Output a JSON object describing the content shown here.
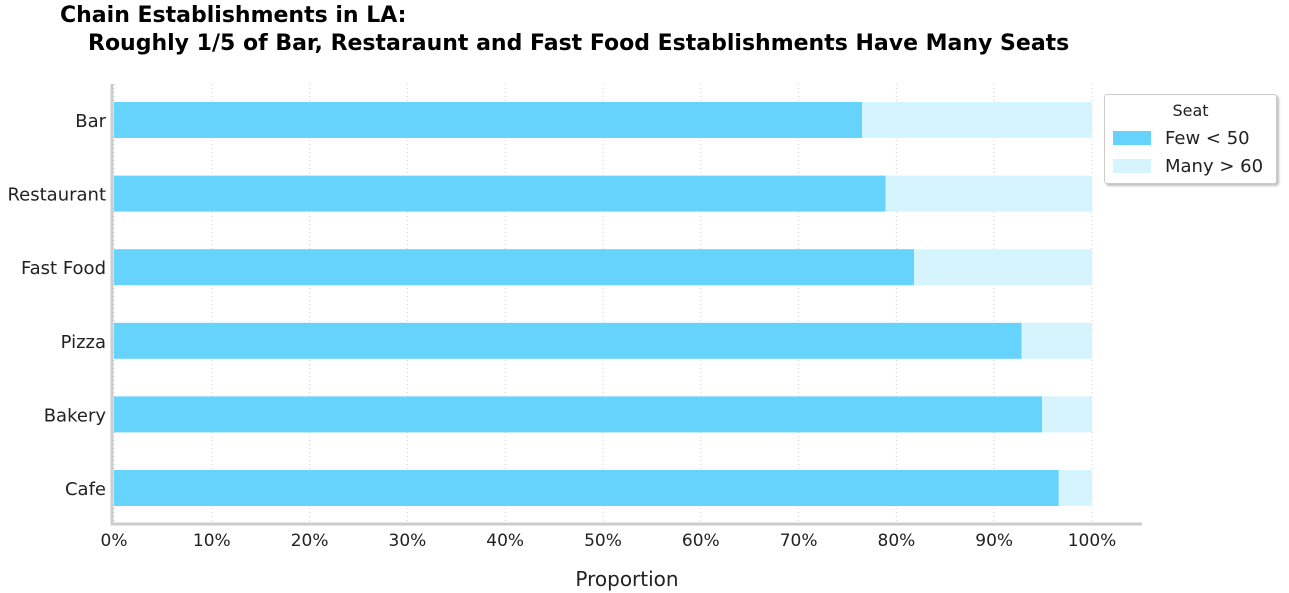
{
  "chart_data": {
    "type": "bar",
    "orientation": "horizontal",
    "stacked": true,
    "title_line1": "Chain Establishments in LA:",
    "title_line2": "Roughly 1/5 of Bar, Restaraunt and Fast Food Establishments Have Many Seats",
    "xlabel": "Proportion",
    "ylabel": "",
    "categories": [
      "Bar",
      "Restaurant",
      "Fast Food",
      "Pizza",
      "Bakery",
      "Cafe"
    ],
    "series": [
      {
        "name": "Few < 50",
        "values": [
          0.765,
          0.789,
          0.818,
          0.928,
          0.949,
          0.966
        ],
        "color": "#66d3fc"
      },
      {
        "name": "Many > 60",
        "values": [
          0.235,
          0.211,
          0.182,
          0.072,
          0.051,
          0.034
        ],
        "color": "#d6f4fe"
      }
    ],
    "xlim": [
      0,
      1
    ],
    "xticks": [
      0,
      0.1,
      0.2,
      0.3,
      0.4,
      0.5,
      0.6,
      0.7,
      0.8,
      0.9,
      1.0
    ],
    "xtick_labels": [
      "0%",
      "10%",
      "20%",
      "30%",
      "40%",
      "50%",
      "60%",
      "70%",
      "80%",
      "90%",
      "100%"
    ],
    "grid": "vertical dotted",
    "legend": {
      "title": "Seat",
      "placement": "top-right outside"
    }
  }
}
